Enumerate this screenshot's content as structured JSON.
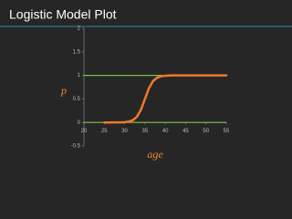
{
  "chart_data": {
    "type": "line",
    "title": "Logistic Model Plot",
    "xlabel": "age",
    "ylabel": "p",
    "x": [
      25,
      26,
      27,
      28,
      29,
      30,
      31,
      32,
      33,
      34,
      35,
      36,
      37,
      38,
      39,
      40,
      41,
      42,
      43,
      44,
      45,
      46,
      47,
      48,
      49,
      50,
      51,
      52,
      53,
      54,
      55
    ],
    "values": [
      0,
      0,
      0.001,
      0.001,
      0.002,
      0.007,
      0.018,
      0.047,
      0.119,
      0.269,
      0.5,
      0.731,
      0.881,
      0.953,
      0.982,
      0.993,
      0.998,
      0.999,
      1,
      1,
      1,
      1,
      1,
      1,
      1,
      1,
      1,
      1,
      1,
      1,
      1
    ],
    "color": "#f07a28",
    "hlines": [
      0,
      1
    ],
    "hline_color": "#7cc04a",
    "xlim": [
      20,
      55
    ],
    "xticks": [
      20,
      25,
      30,
      35,
      40,
      45,
      50,
      55
    ],
    "ylim": [
      -0.5,
      2
    ],
    "yticks": [
      -0.5,
      0,
      0.5,
      1,
      1.5,
      2
    ]
  }
}
